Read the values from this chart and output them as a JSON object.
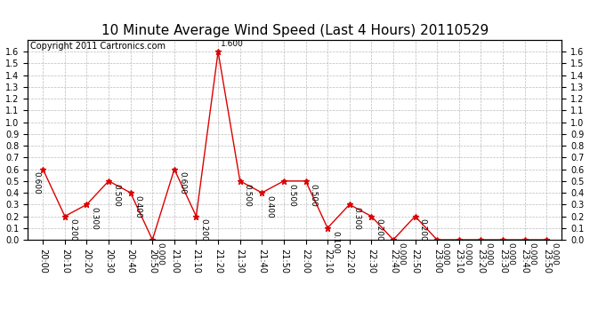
{
  "title": "10 Minute Average Wind Speed (Last 4 Hours) 20110529",
  "copyright": "Copyright 2011 Cartronics.com",
  "x_labels": [
    "20:00",
    "20:10",
    "20:20",
    "20:30",
    "20:40",
    "20:50",
    "21:00",
    "21:10",
    "21:20",
    "21:30",
    "21:40",
    "21:50",
    "22:00",
    "22:10",
    "22:20",
    "22:30",
    "22:40",
    "22:50",
    "23:00",
    "23:10",
    "23:20",
    "23:30",
    "23:40",
    "23:50"
  ],
  "y_values": [
    0.6,
    0.2,
    0.3,
    0.5,
    0.4,
    0.0,
    0.6,
    0.2,
    1.6,
    0.5,
    0.4,
    0.5,
    0.5,
    0.1,
    0.3,
    0.2,
    0.0,
    0.2,
    0.0,
    0.0,
    0.0,
    0.0,
    0.0,
    0.0
  ],
  "line_color": "#dd0000",
  "marker_color": "#dd0000",
  "background_color": "#ffffff",
  "grid_color": "#bbbbbb",
  "ylim": [
    0.0,
    1.7
  ],
  "yticks_left": [
    0.0,
    0.1,
    0.2,
    0.3,
    0.4,
    0.5,
    0.6,
    0.7,
    0.8,
    0.9,
    1.0,
    1.1,
    1.2,
    1.3,
    1.4,
    1.5,
    1.6
  ],
  "yticks_right": [
    0.0,
    0.1,
    0.2,
    0.3,
    0.4,
    0.5,
    0.6,
    0.7,
    0.8,
    0.9,
    1.0,
    1.1,
    1.2,
    1.3,
    1.4,
    1.5,
    1.6
  ],
  "title_fontsize": 11,
  "label_fontsize": 7,
  "annotation_fontsize": 6.5,
  "copyright_fontsize": 7
}
